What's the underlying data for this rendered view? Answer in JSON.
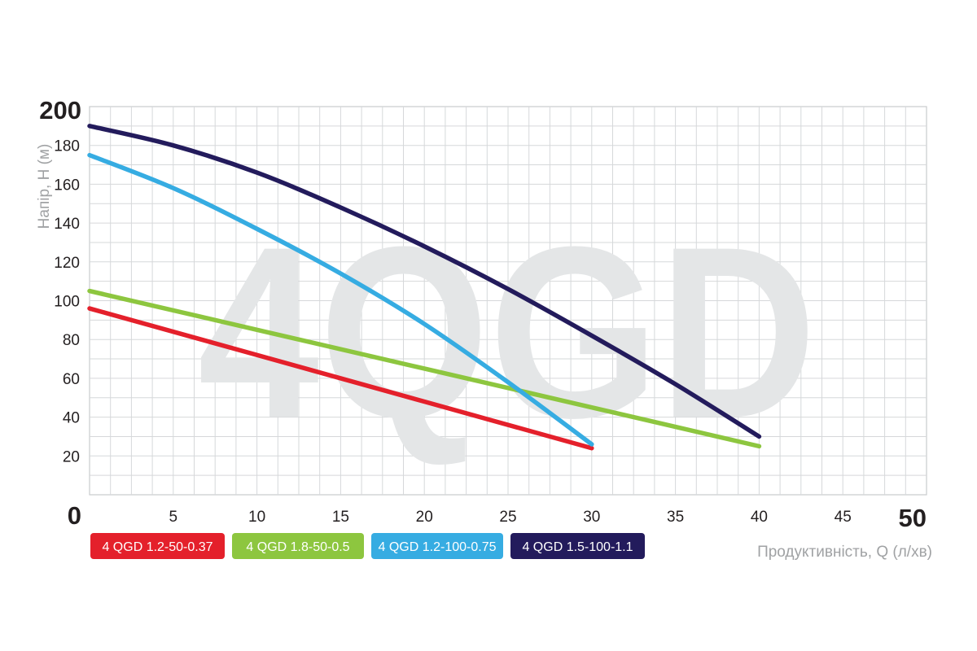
{
  "chart_data": {
    "type": "line",
    "watermark": "4QGD",
    "ylabel": "Напір, Н (м)",
    "xlabel": "Продуктивність, Q (л/хв)",
    "xlim": [
      0,
      50
    ],
    "ylim": [
      0,
      200
    ],
    "x_ticks": [
      {
        "value": 0,
        "label": "0"
      },
      {
        "value": 5,
        "label": "5"
      },
      {
        "value": 10,
        "label": "10"
      },
      {
        "value": 15,
        "label": "15"
      },
      {
        "value": 20,
        "label": "20"
      },
      {
        "value": 25,
        "label": "25"
      },
      {
        "value": 30,
        "label": "30"
      },
      {
        "value": 35,
        "label": "35"
      },
      {
        "value": 40,
        "label": "40"
      },
      {
        "value": 45,
        "label": "45"
      },
      {
        "value": 50,
        "label": "50"
      }
    ],
    "y_ticks": [
      {
        "value": 0,
        "label": "0"
      },
      {
        "value": 20,
        "label": "20"
      },
      {
        "value": 40,
        "label": "40"
      },
      {
        "value": 60,
        "label": "60"
      },
      {
        "value": 80,
        "label": "80"
      },
      {
        "value": 100,
        "label": "100"
      },
      {
        "value": 120,
        "label": "120"
      },
      {
        "value": 140,
        "label": "140"
      },
      {
        "value": 160,
        "label": "160"
      },
      {
        "value": 180,
        "label": "180"
      },
      {
        "value": 200,
        "label": "200"
      }
    ],
    "grid": true,
    "legend_position": "bottom-left",
    "series": [
      {
        "name": "4 QGD 1.2-50-0.37",
        "color": "#e4202b",
        "x": [
          0,
          10,
          20,
          30
        ],
        "y": [
          96,
          72,
          48,
          24
        ]
      },
      {
        "name": "4 QGD 1.8-50-0.5",
        "color": "#8dc63f",
        "x": [
          0,
          10,
          20,
          30,
          40
        ],
        "y": [
          105,
          85,
          65,
          45,
          25
        ]
      },
      {
        "name": "4 QGD 1.2-100-0.75",
        "color": "#36ace2",
        "x": [
          0,
          5,
          10,
          15,
          20,
          25,
          30
        ],
        "y": [
          175,
          158,
          137,
          114,
          88,
          58,
          26
        ]
      },
      {
        "name": "4 QGD 1.5-100-1.1",
        "color": "#231b5c",
        "x": [
          0,
          5,
          10,
          15,
          20,
          25,
          30,
          35,
          40
        ],
        "y": [
          190,
          180,
          166,
          148,
          128,
          106,
          82,
          57,
          30
        ]
      }
    ]
  }
}
